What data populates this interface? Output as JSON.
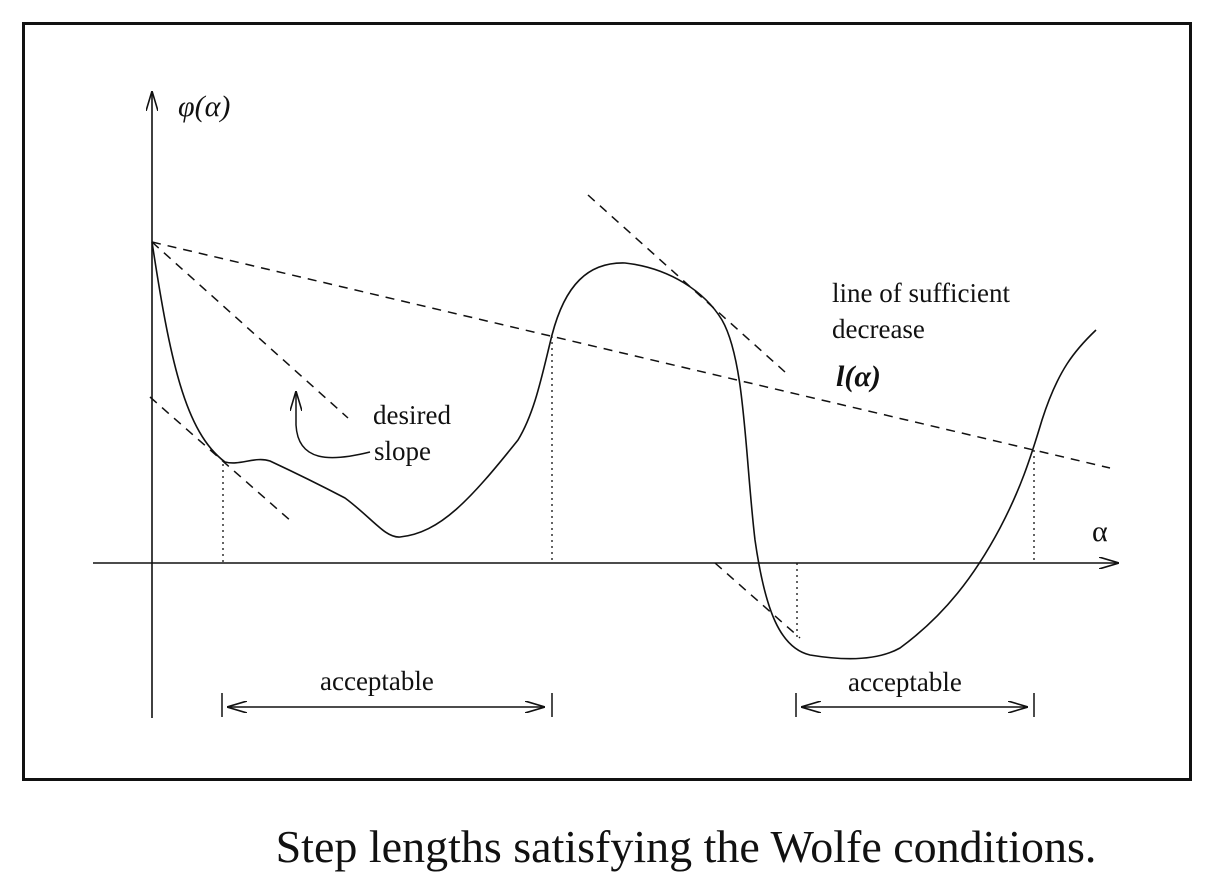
{
  "figure": {
    "y_axis_label": "φ(α)",
    "x_axis_label": "α",
    "sufficient_decrease_label_line1": "line of sufficient",
    "sufficient_decrease_label_line2": "decrease",
    "sufficient_decrease_symbol": "l(α)",
    "desired_slope_line1": "desired",
    "desired_slope_line2": "slope",
    "acceptable_left": "acceptable",
    "acceptable_right": "acceptable"
  },
  "caption": "Step lengths satisfying the Wolfe conditions."
}
